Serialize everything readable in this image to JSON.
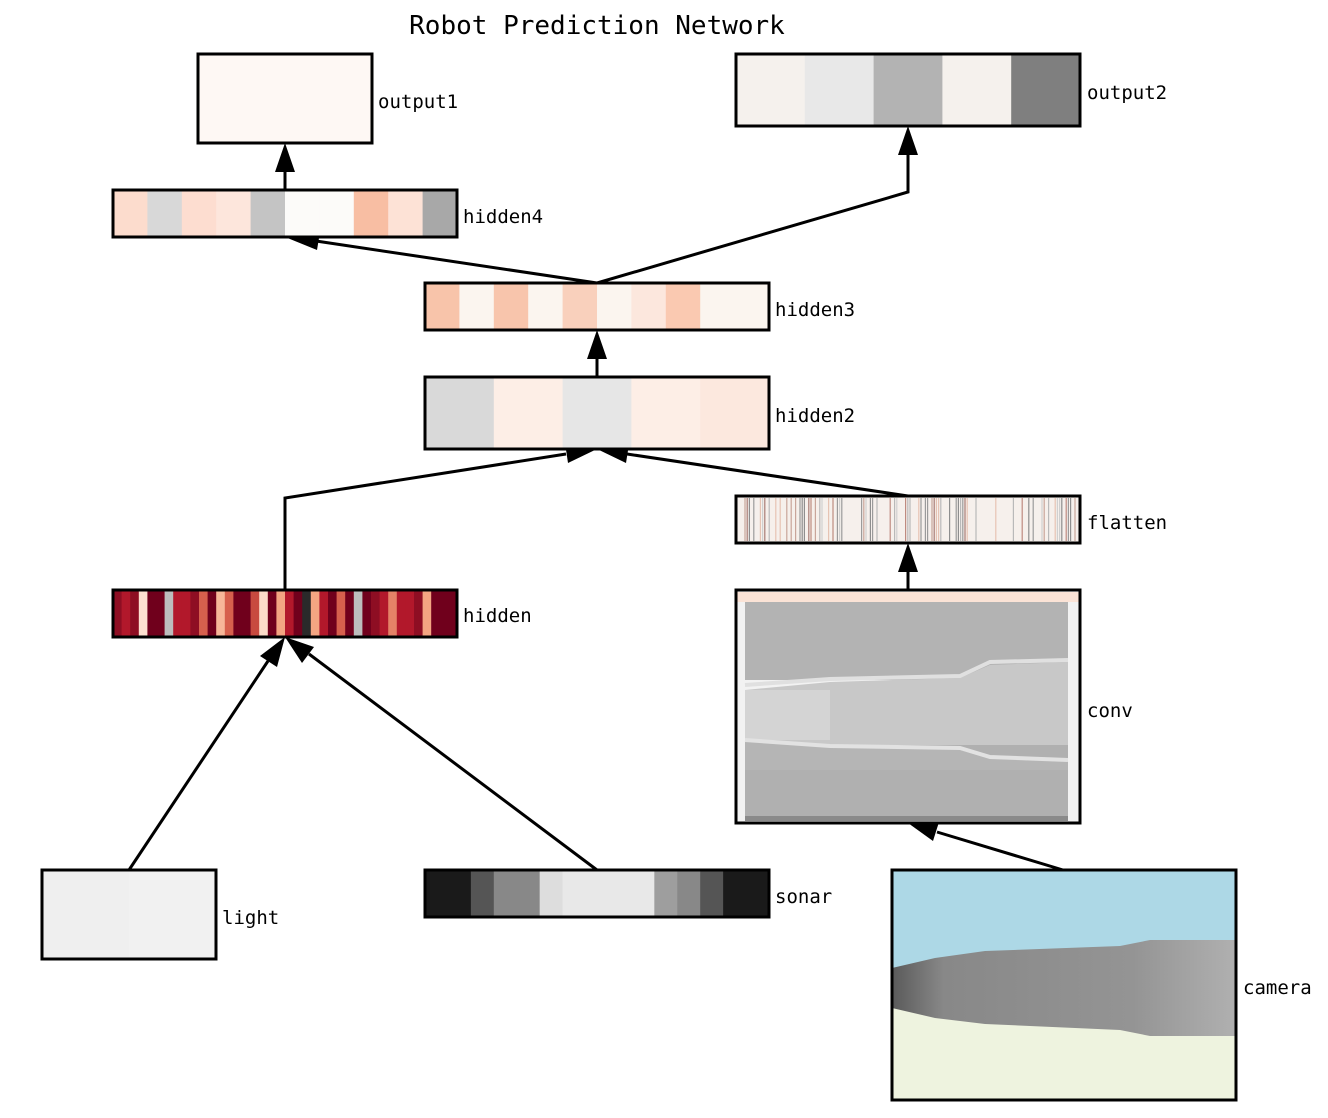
{
  "title": "Robot Prediction Network",
  "layers": {
    "output1": {
      "label": "output1",
      "cells": [
        "#fef8f4"
      ]
    },
    "output2": {
      "label": "output2",
      "cells": [
        "#f5f1ed",
        "#e8e8e8",
        "#b3b3b3",
        "#f5f1ed",
        "#7f7f7f"
      ]
    },
    "hidden4": {
      "label": "hidden4",
      "cells": [
        "#fcdccd",
        "#d8d8d8",
        "#fdddd0",
        "#fde6dc",
        "#c4c4c4",
        "#fcfbf9",
        "#fcfbf9",
        "#f8bea3",
        "#fde2d6",
        "#a8a8a8"
      ]
    },
    "hidden3": {
      "label": "hidden3",
      "cells": [
        "#f8c4aa",
        "#fbf5ef",
        "#f8c5ac",
        "#fbf5ef",
        "#f9d0bc",
        "#fbf5ef",
        "#fce7dd",
        "#fac9b1",
        "#fbf5ef",
        "#fbf5ef"
      ]
    },
    "hidden2": {
      "label": "hidden2",
      "cells": [
        "#d9d9d9",
        "#fdeee6",
        "#e6e6e6",
        "#fdeee6",
        "#fce8de"
      ]
    },
    "flatten": {
      "label": "flatten"
    },
    "hidden": {
      "label": "hidden",
      "cells": [
        "#8e0e23",
        "#b2182b",
        "#8e0e23",
        "#fde0d0",
        "#70001c",
        "#70001c",
        "#bdbdbd",
        "#b2182b",
        "#b2182b",
        "#8e0e23",
        "#d6604d",
        "#70001c",
        "#f7b799",
        "#d6604d",
        "#70001c",
        "#70001c",
        "#c84a3f",
        "#fcdcc9",
        "#70001c",
        "#f4a582",
        "#b2182b",
        "#70001c",
        "#2a2a2a",
        "#f4a582",
        "#b2182b",
        "#70001c",
        "#d6604d",
        "#70001c",
        "#bdbdbd",
        "#70001c",
        "#8e0e23",
        "#b2182b",
        "#e58267",
        "#b2182b",
        "#b2182b",
        "#8e0e23",
        "#f4a582",
        "#70001c",
        "#70001c",
        "#70001c"
      ]
    },
    "conv": {
      "label": "conv"
    },
    "light": {
      "label": "light",
      "cells": [
        "#efefef",
        "#f1f1f1"
      ]
    },
    "sonar": {
      "label": "sonar",
      "cells": [
        "#1a1a1a",
        "#1a1a1a",
        "#555555",
        "#888888",
        "#888888",
        "#dddddd",
        "#e8e8e8",
        "#e8e8e8",
        "#e8e8e8",
        "#e8e8e8",
        "#9e9e9e",
        "#888888",
        "#555555",
        "#1a1a1a",
        "#1a1a1a"
      ]
    },
    "camera": {
      "label": "camera",
      "colors": {
        "sky": "#add8e6",
        "ground": "#eef3df",
        "wall_dark": "#5a5a5a",
        "wall_light": "#b0b0b0"
      }
    }
  }
}
